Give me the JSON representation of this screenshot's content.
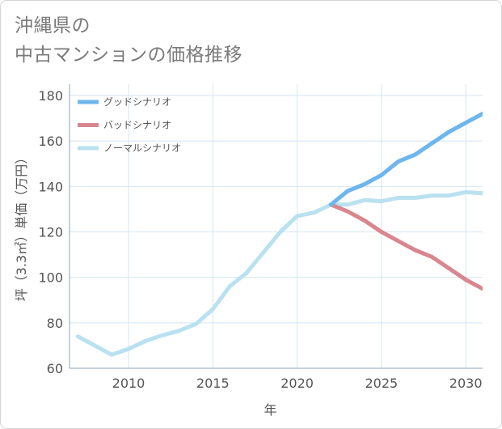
{
  "chart_data": {
    "type": "line",
    "title_lines": [
      "沖縄県の",
      "中古マンションの価格推移"
    ],
    "xlabel": "年",
    "ylabel": "坪（3.3㎡）単価（万円）",
    "xlim": [
      2006.5,
      2031
    ],
    "ylim": [
      60,
      185
    ],
    "xticks": [
      2010,
      2015,
      2020,
      2025,
      2030
    ],
    "yticks": [
      60,
      80,
      100,
      120,
      140,
      160,
      180
    ],
    "grid": true,
    "legend_position": "top-left",
    "series": [
      {
        "name": "グッドシナリオ",
        "color": "#6db6ee",
        "x": [
          2022,
          2023,
          2024,
          2025,
          2026,
          2027,
          2028,
          2029,
          2030,
          2031
        ],
        "values": [
          132,
          138,
          141,
          145,
          151,
          154,
          159,
          164,
          168,
          172
        ]
      },
      {
        "name": "バッドシナリオ",
        "color": "#d9868e",
        "x": [
          2022,
          2023,
          2024,
          2025,
          2026,
          2027,
          2028,
          2029,
          2030,
          2031
        ],
        "values": [
          132,
          129,
          125,
          120,
          116,
          112,
          109,
          104,
          99,
          95
        ]
      },
      {
        "name": "ノーマルシナリオ",
        "color": "#b9e1f0",
        "x": [
          2007,
          2008,
          2009,
          2010,
          2011,
          2012,
          2013,
          2014,
          2015,
          2016,
          2017,
          2018,
          2019,
          2020,
          2021,
          2022,
          2023,
          2024,
          2025,
          2026,
          2027,
          2028,
          2029,
          2030,
          2031
        ],
        "values": [
          74,
          70,
          66,
          68.5,
          72,
          74.5,
          76.5,
          79.5,
          86,
          96,
          102,
          111,
          120,
          127,
          128.5,
          132,
          132,
          134,
          133.5,
          135,
          135,
          136,
          136,
          137.5,
          137
        ]
      }
    ]
  }
}
